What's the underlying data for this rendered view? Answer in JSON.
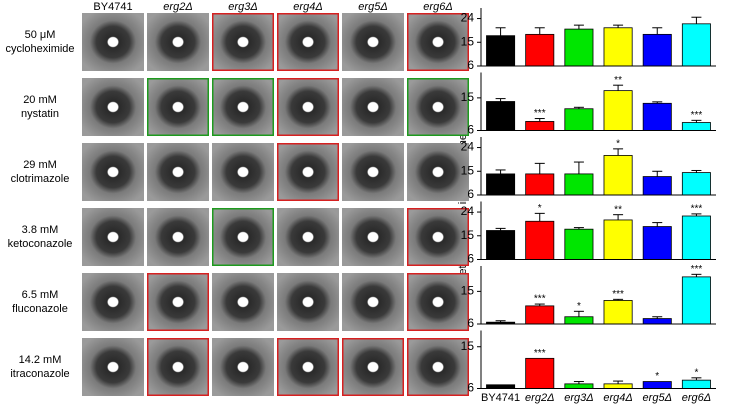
{
  "grid": {
    "column_headers": [
      "BY4741",
      "erg2Δ",
      "erg3Δ",
      "erg4Δ",
      "erg5Δ",
      "erg6Δ"
    ],
    "row_labels": [
      [
        "50 μM",
        "cycloheximide"
      ],
      [
        "20 mM",
        "nystatin"
      ],
      [
        "29 mM",
        "clotrimazole"
      ],
      [
        "3.8 mM",
        "ketoconazole"
      ],
      [
        "6.5 mM",
        "fluconazole"
      ],
      [
        "14.2 mM",
        "itraconazole"
      ]
    ],
    "borders": [
      [
        null,
        null,
        "#d62020",
        "#d62020",
        null,
        "#d62020"
      ],
      [
        null,
        "#1e9a1e",
        "#1e9a1e",
        "#d62020",
        null,
        "#1e9a1e"
      ],
      [
        null,
        null,
        null,
        "#d62020",
        null,
        null
      ],
      [
        null,
        null,
        "#1e9a1e",
        null,
        null,
        "#d62020"
      ],
      [
        null,
        "#d62020",
        null,
        null,
        null,
        "#d62020"
      ],
      [
        null,
        "#d62020",
        null,
        "#d62020",
        "#d62020",
        "#d62020"
      ]
    ]
  },
  "chart_data": {
    "type": "bar",
    "ylabel": "Diameter of growth inhibition zones (mm)",
    "categories": [
      "BY4741",
      "erg2Δ",
      "erg3Δ",
      "erg4Δ",
      "erg5Δ",
      "erg6Δ"
    ],
    "colors": [
      "#000000",
      "#ff0000",
      "#00e600",
      "#ffff00",
      "#0000ff",
      "#00ffff"
    ],
    "panels": [
      {
        "ylim": [
          6,
          28
        ],
        "yticks": [
          6,
          15,
          24
        ],
        "values": [
          17.5,
          18,
          20,
          20.5,
          18,
          22
        ],
        "errors": [
          3,
          2.5,
          1.5,
          1,
          2.5,
          2.5
        ],
        "significance": [
          null,
          null,
          null,
          null,
          null,
          null
        ]
      },
      {
        "ylim": [
          6,
          22
        ],
        "yticks": [
          6,
          15
        ],
        "values": [
          14,
          8.5,
          12,
          17,
          13.5,
          8.2
        ],
        "errors": [
          0.8,
          0.8,
          0.4,
          1.5,
          0.4,
          0.6
        ],
        "significance": [
          null,
          "***",
          null,
          "**",
          null,
          "***"
        ]
      },
      {
        "ylim": [
          6,
          28
        ],
        "yticks": [
          6,
          15,
          24
        ],
        "values": [
          14,
          14,
          14,
          21,
          13,
          14.5
        ],
        "errors": [
          1.5,
          4,
          4.5,
          2.5,
          2,
          0.8
        ],
        "significance": [
          null,
          null,
          null,
          "*",
          null,
          null
        ]
      },
      {
        "ylim": [
          6,
          28
        ],
        "yticks": [
          6,
          15,
          24
        ],
        "values": [
          17,
          20.5,
          17.5,
          21,
          18.5,
          22.5
        ],
        "errors": [
          0.8,
          3,
          0.6,
          2,
          1.5,
          0.8
        ],
        "significance": [
          null,
          "*",
          null,
          "**",
          null,
          "***"
        ]
      },
      {
        "ylim": [
          6,
          22
        ],
        "yticks": [
          6,
          15
        ],
        "values": [
          6.5,
          11,
          8,
          12.5,
          7.5,
          19
        ],
        "errors": [
          0.4,
          0.5,
          1.5,
          0.3,
          0.5,
          0.7
        ],
        "significance": [
          null,
          "***",
          "*",
          "***",
          null,
          "***"
        ]
      },
      {
        "ylim": [
          6,
          18.5
        ],
        "yticks": [
          6,
          15
        ],
        "values": [
          6.8,
          12.5,
          7,
          7,
          7.5,
          7.8
        ],
        "errors": [
          null,
          null,
          0.5,
          0.6,
          null,
          0.5
        ],
        "significance": [
          null,
          "***",
          null,
          null,
          "*",
          "*"
        ]
      }
    ]
  }
}
